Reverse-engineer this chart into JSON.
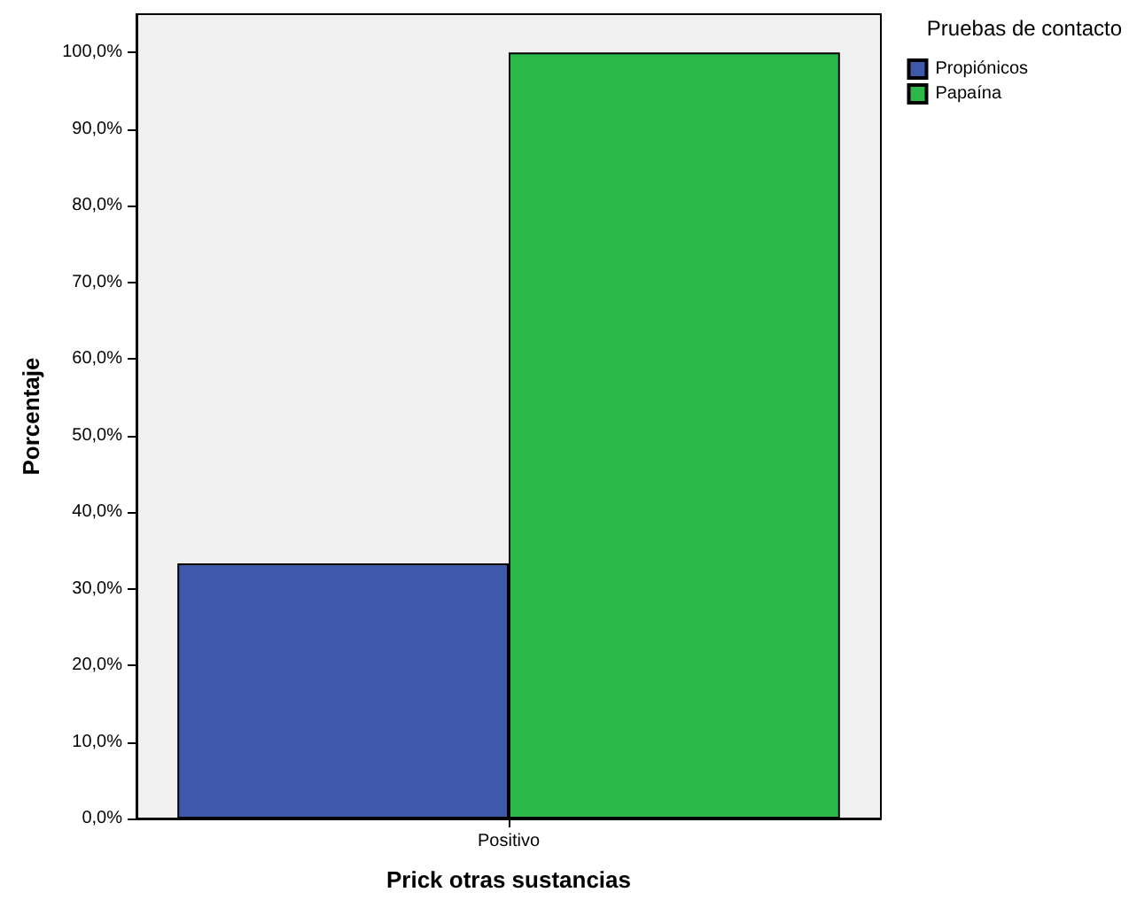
{
  "chart_data": {
    "type": "bar",
    "xlabel": "Prick otras sustancias",
    "ylabel": "Porcentaje",
    "legend_title": "Pruebas de contacto",
    "categories": [
      "Positivo"
    ],
    "series": [
      {
        "name": "Propiónicos",
        "color": "#3e58ac",
        "values": [
          33.3
        ]
      },
      {
        "name": "Papaína",
        "color": "#2db84a",
        "values": [
          100
        ]
      }
    ],
    "ylim": [
      0,
      105
    ],
    "yticks": [
      {
        "value": 0,
        "label": "0,0%"
      },
      {
        "value": 10,
        "label": "10,0%"
      },
      {
        "value": 20,
        "label": "20,0%"
      },
      {
        "value": 30,
        "label": "30,0%"
      },
      {
        "value": 40,
        "label": "40,0%"
      },
      {
        "value": 50,
        "label": "50,0%"
      },
      {
        "value": 60,
        "label": "60,0%"
      },
      {
        "value": 70,
        "label": "70,0%"
      },
      {
        "value": 80,
        "label": "80,0%"
      },
      {
        "value": 90,
        "label": "90,0%"
      },
      {
        "value": 100,
        "label": "100,0%"
      }
    ],
    "grid": false,
    "legend": "top right"
  }
}
